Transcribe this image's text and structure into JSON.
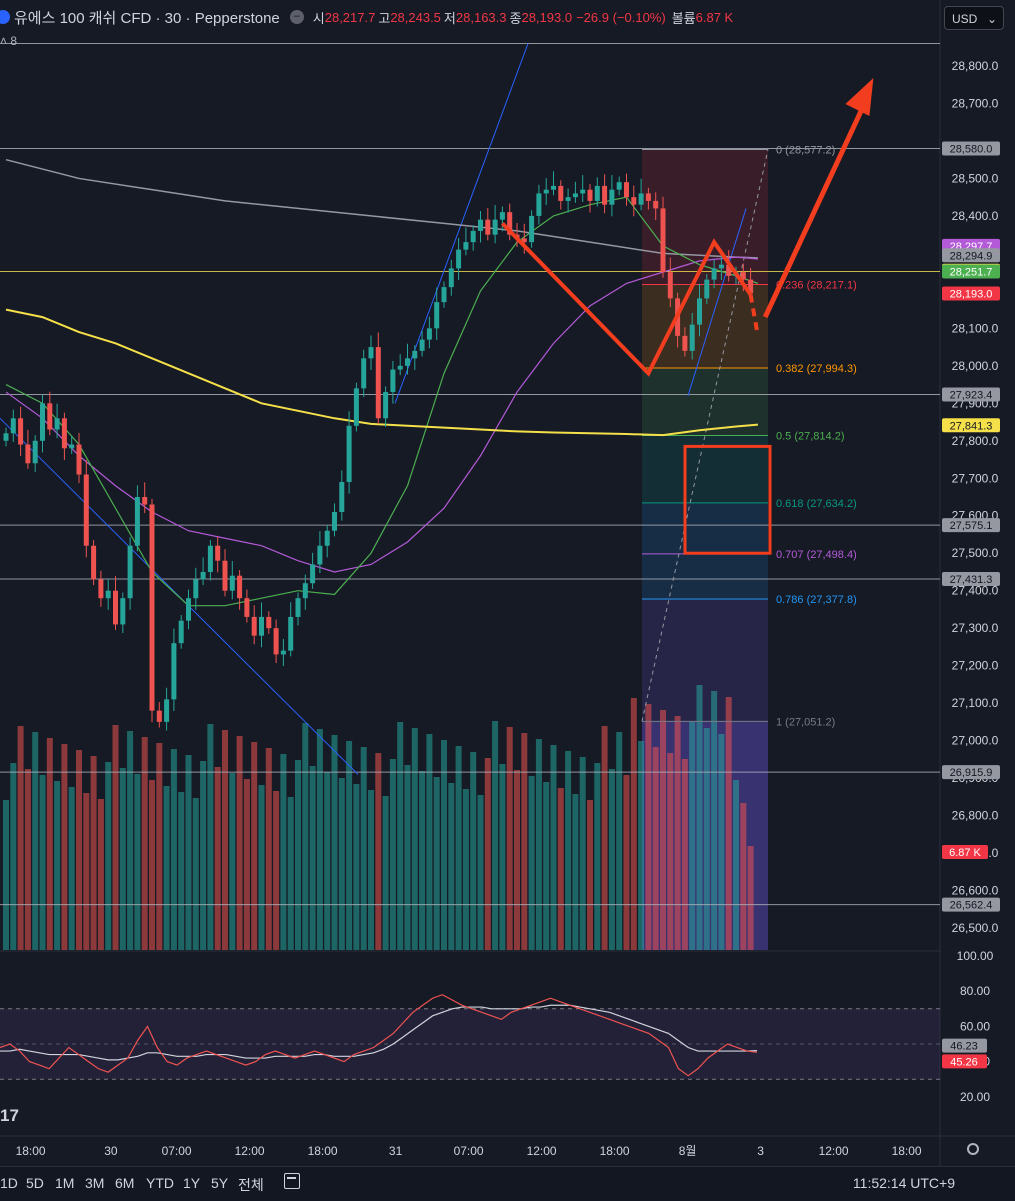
{
  "header": {
    "symbol": "유에스 100 캐쉬 CFD · 30 · Pepperstone",
    "ohlc": [
      {
        "label": "시",
        "value": "28,217.7"
      },
      {
        "label": "고",
        "value": "28,243.5"
      },
      {
        "label": "저",
        "value": "28,163.3"
      },
      {
        "label": "종",
        "value": "28,193.0"
      }
    ],
    "change": "−26.9 (−0.10%)",
    "volume_label": "볼륨",
    "volume_value": "6.87 K",
    "sub": "8"
  },
  "currency_select": {
    "value": "USD"
  },
  "bottom": {
    "ranges": [
      "1D",
      "5D",
      "1M",
      "3M",
      "6M",
      "YTD",
      "1Y",
      "5Y",
      "전체"
    ],
    "clock": "11:52:14 UTC+9"
  },
  "colors": {
    "background": "#161a25",
    "up": "#26a69a",
    "down": "#ef5350",
    "ema_yellow": "#f5e04a",
    "ema_gray": "#9598a1",
    "ma_purple": "#b45ad8",
    "ma_green": "#4caf50",
    "annotation": "#f23d1e"
  },
  "chart_data": {
    "type": "candlestick",
    "price_axis": {
      "ticks": [
        28800,
        28700,
        28500,
        28400,
        28300,
        28100,
        28000,
        27900,
        27800,
        27700,
        27600,
        27500,
        27400,
        27300,
        27200,
        27100,
        27000,
        26900,
        26800,
        26700,
        26600,
        26500
      ],
      "tick_labels": [
        "28,800.0",
        "28,700.0",
        "28,500.0",
        "28,400.0",
        "28,300.0",
        "28,100.0",
        "28,000.0",
        "27,900.0",
        "27,800.0",
        "27,700.0",
        "27,600.0",
        "27,500.0",
        "27,400.0",
        "27,300.0",
        "27,200.0",
        "27,100.0",
        "27,000.0",
        "26,900.0",
        "26,800.0",
        "26,700.0",
        "26,600.0",
        "26,500.0"
      ],
      "range": [
        26470,
        28890
      ]
    },
    "time_axis": {
      "labels": [
        {
          "label": "18:00",
          "bar": 2
        },
        {
          "label": "30",
          "bar": 13
        },
        {
          "label": "07:00",
          "bar": 22
        },
        {
          "label": "12:00",
          "bar": 32
        },
        {
          "label": "18:00",
          "bar": 42
        },
        {
          "label": "31",
          "bar": 52
        },
        {
          "label": "07:00",
          "bar": 62
        },
        {
          "label": "12:00",
          "bar": 72
        },
        {
          "label": "18:00",
          "bar": 82
        },
        {
          "label": "8월",
          "bar": 92
        },
        {
          "label": "3",
          "bar": 102
        },
        {
          "label": "12:00",
          "bar": 112
        },
        {
          "label": "18:00",
          "bar": 122
        }
      ]
    },
    "closes": [
      27820,
      27860,
      27790,
      27740,
      27800,
      27900,
      27830,
      27860,
      27780,
      27790,
      27710,
      27520,
      27430,
      27380,
      27400,
      27310,
      27380,
      27520,
      27650,
      27630,
      27080,
      27050,
      27110,
      27260,
      27320,
      27380,
      27430,
      27450,
      27520,
      27480,
      27400,
      27440,
      27380,
      27330,
      27280,
      27330,
      27300,
      27230,
      27240,
      27330,
      27380,
      27420,
      27470,
      27520,
      27560,
      27610,
      27690,
      27840,
      27940,
      28020,
      28050,
      27860,
      27930,
      27990,
      28000,
      28020,
      28040,
      28070,
      28100,
      28170,
      28210,
      28260,
      28310,
      28330,
      28360,
      28390,
      28350,
      28390,
      28410,
      28350,
      28340,
      28330,
      28400,
      28460,
      28470,
      28480,
      28440,
      28450,
      28460,
      28470,
      28440,
      28480,
      28430,
      28470,
      28490,
      28450,
      28430,
      28460,
      28440,
      28420,
      28250,
      28180,
      28080,
      28040,
      28110,
      28180,
      28230,
      28260,
      28270,
      28240,
      28250,
      28230,
      28193
    ],
    "pattern_path": [
      [
        68,
        28380
      ],
      [
        88,
        27980
      ],
      [
        97,
        28330
      ],
      [
        102,
        28190
      ]
    ],
    "arrow": {
      "from": [
        104,
        28130
      ],
      "to": [
        118,
        28720
      ]
    },
    "ema_yellow": [
      [
        0,
        28150
      ],
      [
        5,
        28130
      ],
      [
        10,
        28090
      ],
      [
        15,
        28060
      ],
      [
        20,
        28020
      ],
      [
        25,
        27980
      ],
      [
        30,
        27940
      ],
      [
        35,
        27900
      ],
      [
        40,
        27880
      ],
      [
        45,
        27860
      ],
      [
        50,
        27845
      ],
      [
        55,
        27840
      ],
      [
        60,
        27835
      ],
      [
        65,
        27830
      ],
      [
        70,
        27825
      ],
      [
        75,
        27822
      ],
      [
        80,
        27820
      ],
      [
        85,
        27818
      ],
      [
        90,
        27815
      ],
      [
        95,
        27828
      ],
      [
        100,
        27838
      ],
      [
        103,
        27843
      ]
    ],
    "ema_gray": [
      [
        0,
        28550
      ],
      [
        10,
        28500
      ],
      [
        20,
        28470
      ],
      [
        30,
        28440
      ],
      [
        40,
        28420
      ],
      [
        50,
        28400
      ],
      [
        60,
        28380
      ],
      [
        70,
        28360
      ],
      [
        80,
        28330
      ],
      [
        90,
        28300
      ],
      [
        100,
        28290
      ],
      [
        103,
        28288
      ]
    ],
    "ma_purple": [
      [
        0,
        27930
      ],
      [
        5,
        27860
      ],
      [
        10,
        27760
      ],
      [
        15,
        27680
      ],
      [
        20,
        27610
      ],
      [
        25,
        27560
      ],
      [
        30,
        27540
      ],
      [
        35,
        27520
      ],
      [
        40,
        27480
      ],
      [
        45,
        27450
      ],
      [
        50,
        27470
      ],
      [
        55,
        27530
      ],
      [
        60,
        27620
      ],
      [
        65,
        27760
      ],
      [
        70,
        27930
      ],
      [
        75,
        28060
      ],
      [
        80,
        28160
      ],
      [
        85,
        28220
      ],
      [
        90,
        28250
      ],
      [
        95,
        28280
      ],
      [
        100,
        28290
      ],
      [
        103,
        28285
      ]
    ],
    "ma_green": [
      [
        0,
        27950
      ],
      [
        5,
        27900
      ],
      [
        10,
        27790
      ],
      [
        15,
        27620
      ],
      [
        20,
        27450
      ],
      [
        25,
        27360
      ],
      [
        30,
        27360
      ],
      [
        35,
        27380
      ],
      [
        40,
        27400
      ],
      [
        45,
        27390
      ],
      [
        50,
        27500
      ],
      [
        55,
        27680
      ],
      [
        60,
        27980
      ],
      [
        65,
        28200
      ],
      [
        70,
        28330
      ],
      [
        75,
        28400
      ],
      [
        80,
        28430
      ],
      [
        85,
        28450
      ],
      [
        90,
        28320
      ],
      [
        95,
        28270
      ],
      [
        100,
        28240
      ],
      [
        103,
        28220
      ]
    ],
    "fibonacci": {
      "levels": [
        {
          "ratio": "0",
          "price": 28577.2,
          "label": "0 (28,577.2)",
          "color": "#9598a1"
        },
        {
          "ratio": "0.236",
          "price": 28217.1,
          "label": "0.236 (28,217.1)",
          "color": "#f23645"
        },
        {
          "ratio": "0.382",
          "price": 27994.3,
          "label": "0.382 (27,994.3)",
          "color": "#ff9800"
        },
        {
          "ratio": "0.5",
          "price": 27814.2,
          "label": "0.5 (27,814.2)",
          "color": "#4caf50"
        },
        {
          "ratio": "0.618",
          "price": 27634.2,
          "label": "0.618 (27,634.2)",
          "color": "#089981"
        },
        {
          "ratio": "0.707",
          "price": 27498.4,
          "label": "0.707 (27,498.4)",
          "color": "#b45ad8"
        },
        {
          "ratio": "0.786",
          "price": 27377.8,
          "label": "0.786 (27,377.8)",
          "color": "#2196f3"
        },
        {
          "ratio": "1",
          "price": 27051.2,
          "label": "1 (27,051.2)",
          "color": "#787b86"
        }
      ]
    },
    "horizontal_lines": [
      {
        "price": 28860,
        "color": "#b2b5be",
        "label": ""
      },
      {
        "price": 28580.0,
        "color": "#b2b5be",
        "label": "28,580.0"
      },
      {
        "price": 28251.7,
        "color": "#f5e04a",
        "label": "28,251.7"
      },
      {
        "price": 27923.4,
        "color": "#b2b5be",
        "label": "27,923.4"
      },
      {
        "price": 27575.1,
        "color": "#b2b5be",
        "label": "27,575.1"
      },
      {
        "price": 27431.3,
        "color": "#b2b5be",
        "label": "27,431.3"
      },
      {
        "price": 26915.9,
        "color": "#b2b5be",
        "label": "26,915.9"
      },
      {
        "price": 26562.4,
        "color": "#b2b5be",
        "label": "26,562.4"
      }
    ],
    "price_tags": [
      {
        "price": 28580.0,
        "label": "28,580.0",
        "bg": "#9598a1",
        "fg": "#131722"
      },
      {
        "price": 28320,
        "label": "28,297.7",
        "bg": "#b45ad8",
        "fg": "#ffffff"
      },
      {
        "price": 28294.9,
        "label": "28,294.9",
        "bg": "#9598a1",
        "fg": "#131722"
      },
      {
        "price": 28253.8,
        "label": "28,253.8",
        "bg": "#f5e04a",
        "fg": "#131722"
      },
      {
        "price": 28251.7,
        "label": "28,251.7",
        "bg": "#4caf50",
        "fg": "#ffffff"
      },
      {
        "price": 28193.0,
        "label": "28,193.0",
        "bg": "#f23645",
        "fg": "#ffffff"
      },
      {
        "price": 27923.4,
        "label": "27,923.4",
        "bg": "#9598a1",
        "fg": "#131722"
      },
      {
        "price": 27841.3,
        "label": "27,841.3",
        "bg": "#f5e04a",
        "fg": "#131722"
      },
      {
        "price": 27575.1,
        "label": "27,575.1",
        "bg": "#9598a1",
        "fg": "#131722"
      },
      {
        "price": 27431.3,
        "label": "27,431.3",
        "bg": "#9598a1",
        "fg": "#131722"
      },
      {
        "price": 26915.9,
        "label": "26,915.9",
        "bg": "#9598a1",
        "fg": "#131722"
      },
      {
        "price": 26562.4,
        "label": "26,562.4",
        "bg": "#9598a1",
        "fg": "#131722"
      }
    ],
    "volume_tag": {
      "label": "6.87 K",
      "bg": "#f23645"
    },
    "rsi": {
      "ticks": [
        100,
        80,
        60,
        40,
        20
      ],
      "tick_labels": [
        "100.00",
        "80.00",
        "60.00",
        "40.00",
        "20.00"
      ],
      "band": [
        30,
        70
      ],
      "mid": 50,
      "values": [
        48,
        50,
        46,
        40,
        38,
        36,
        42,
        48,
        44,
        40,
        36,
        34,
        38,
        42,
        52,
        60,
        48,
        40,
        38,
        42,
        44,
        46,
        44,
        42,
        40,
        38,
        40,
        44,
        46,
        44,
        42,
        44,
        46,
        44,
        42,
        40,
        44,
        46,
        48,
        52,
        56,
        62,
        68,
        72,
        76,
        78,
        75,
        72,
        70,
        68,
        66,
        64,
        68,
        70,
        72,
        74,
        76,
        74,
        72,
        70,
        68,
        66,
        64,
        62,
        60,
        58,
        56,
        52,
        48,
        36,
        32,
        36,
        42,
        46,
        50,
        48,
        46,
        45.26
      ],
      "signal": [
        46,
        46,
        47,
        46,
        45,
        44,
        44,
        44,
        44,
        43,
        42,
        41,
        41,
        42,
        43,
        45,
        45,
        44,
        43,
        43,
        43,
        44,
        44,
        44,
        43,
        42,
        42,
        42,
        43,
        43,
        43,
        43,
        44,
        44,
        43,
        43,
        43,
        44,
        45,
        47,
        50,
        54,
        58,
        62,
        66,
        68,
        70,
        71,
        71,
        71,
        70,
        70,
        70,
        70,
        71,
        71,
        72,
        72,
        72,
        71,
        70,
        69,
        68,
        66,
        64,
        62,
        60,
        58,
        56,
        52,
        48,
        46,
        46,
        46,
        46,
        46,
        46,
        46.23
      ],
      "label_signal": "46.23",
      "label_rsi": "45.26"
    }
  }
}
